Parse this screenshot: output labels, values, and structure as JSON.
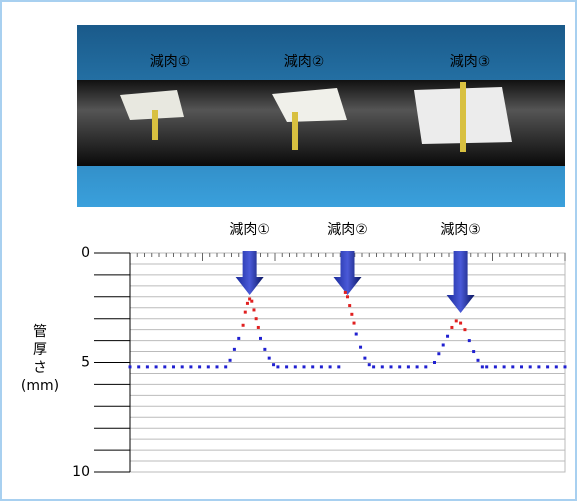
{
  "photo": {
    "labels": [
      "減肉①",
      "減肉②",
      "減肉③"
    ]
  },
  "chart_data": {
    "type": "scatter",
    "ylabel": [
      "管",
      "厚",
      "さ",
      "(mm)"
    ],
    "annotations": [
      {
        "text": "減肉①",
        "x": 27.5
      },
      {
        "text": "減肉②",
        "x": 50
      },
      {
        "text": "減肉③",
        "x": 76
      }
    ],
    "xlim": [
      0,
      100
    ],
    "ylim": [
      0,
      10
    ],
    "yticks": [
      0,
      5,
      10
    ],
    "y_inverted": true,
    "grid": true,
    "grid_step": 0.5,
    "series": [
      {
        "color": "#2020d0",
        "x": [
          0,
          2,
          4,
          6,
          8,
          10,
          12,
          14,
          16,
          18,
          20,
          22,
          23,
          24,
          25,
          30,
          31,
          32,
          33,
          34,
          36,
          38,
          40,
          42,
          44,
          46,
          48,
          52,
          53,
          54,
          55,
          56,
          58,
          60,
          62,
          64,
          66,
          68,
          70,
          71,
          72,
          73,
          78,
          79,
          80,
          81,
          82,
          84,
          86,
          88,
          90,
          92,
          94,
          96,
          98,
          100
        ],
        "values": [
          5.2,
          5.2,
          5.2,
          5.2,
          5.2,
          5.2,
          5.2,
          5.2,
          5.2,
          5.2,
          5.2,
          5.2,
          4.9,
          4.4,
          3.9,
          3.9,
          4.4,
          4.8,
          5.1,
          5.2,
          5.2,
          5.2,
          5.2,
          5.2,
          5.2,
          5.2,
          5.2,
          3.7,
          4.3,
          4.8,
          5.1,
          5.2,
          5.2,
          5.2,
          5.2,
          5.2,
          5.2,
          5.2,
          5.0,
          4.6,
          4.2,
          3.8,
          4.0,
          4.5,
          4.9,
          5.2,
          5.2,
          5.2,
          5.2,
          5.2,
          5.2,
          5.2,
          5.2,
          5.2,
          5.2,
          5.2
        ]
      },
      {
        "color": "#e02020",
        "x": [
          26,
          26.5,
          27,
          27.5,
          28,
          28.5,
          29,
          29.5,
          49.5,
          50,
          50.5,
          51,
          51.5,
          74,
          75,
          76,
          77
        ],
        "values": [
          3.3,
          2.7,
          2.3,
          2.1,
          2.2,
          2.6,
          3.0,
          3.4,
          1.8,
          2.0,
          2.4,
          2.8,
          3.2,
          3.4,
          3.1,
          3.2,
          3.5
        ]
      }
    ]
  }
}
